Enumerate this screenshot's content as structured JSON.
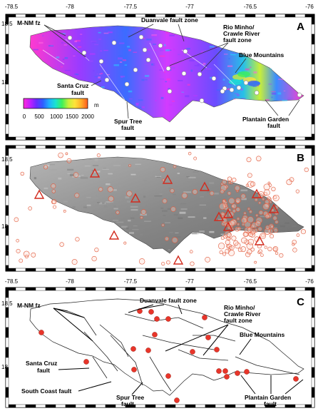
{
  "lon_ticks": [
    "-78.5",
    "-78",
    "-77.5",
    "-77",
    "-76.5",
    "-76"
  ],
  "lat_ticks": [
    "18.5",
    "18"
  ],
  "panels": {
    "a": {
      "letter": "A",
      "labels": {
        "mnm": "M-NM fz",
        "duanvale": "Duanvale fault zone",
        "rio1": "Rio Minho/",
        "rio2": "Crawle River",
        "rio3": "fault zone",
        "blue": "Blue Mountains",
        "santa1": "Santa Cruz",
        "santa2": "fault",
        "spur1": "Spur Tree",
        "spur2": "fault",
        "plantain1": "Plantain Garden",
        "plantain2": "fault"
      },
      "colorbar": {
        "unit": "m",
        "ticks": [
          "0",
          "500",
          "1000",
          "1500",
          "2000"
        ],
        "colors": [
          "#ff2ad8",
          "#c41eff",
          "#6a2cff",
          "#2f5cff",
          "#1fb0ff",
          "#19e3d0",
          "#3cf05a",
          "#c6f03a",
          "#ffe23a",
          "#ffae2a",
          "#ff5a1e"
        ]
      }
    },
    "b": {
      "letter": "B"
    },
    "c": {
      "letter": "C",
      "labels": {
        "mnm": "M-NM fz",
        "duanvale": "Duanvale fault zone",
        "rio1": "Rio Minho/",
        "rio2": "Crawle River",
        "rio3": "fault zone",
        "blue": "Blue Mountains",
        "santa1": "Santa Cruz",
        "santa2": "fault",
        "southcoast": "South Coast fault",
        "spur1": "Spur Tree",
        "spur2": "fault",
        "plantain1": "Plantain Garden",
        "plantain2": "fault"
      }
    }
  },
  "colors": {
    "marker_red": "#e8352a",
    "quake_outline": "#e05a3c",
    "relief_gray": "#8c8c8c",
    "frame": "#000000"
  }
}
